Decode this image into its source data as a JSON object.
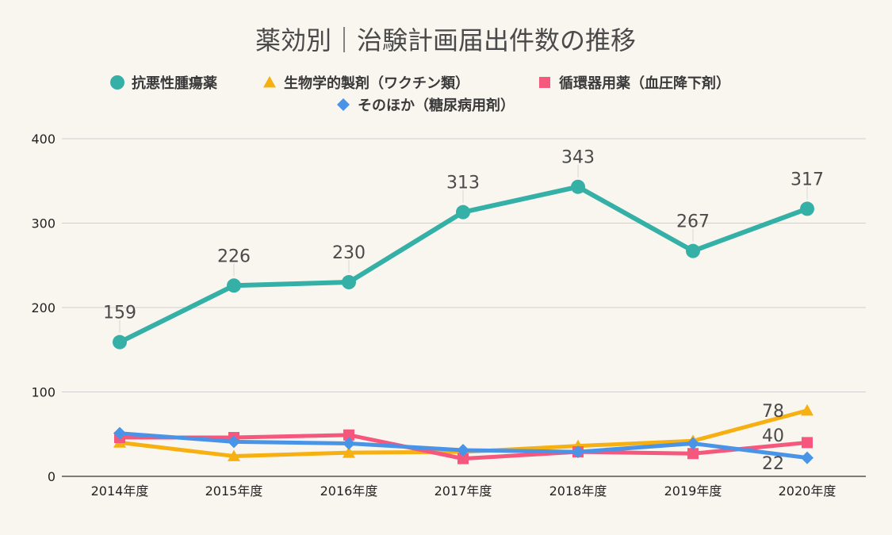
{
  "chart_data": {
    "type": "line",
    "title": "薬効別｜治験計画届出件数の推移",
    "xlabel": "",
    "ylabel": "",
    "categories": [
      "2014年度",
      "2015年度",
      "2016年度",
      "2017年度",
      "2018年度",
      "2019年度",
      "2020年度"
    ],
    "ylim": [
      0,
      400
    ],
    "yticks": [
      0,
      100,
      200,
      300,
      400
    ],
    "grid": true,
    "legend_position": "top",
    "series": [
      {
        "name": "抗悪性腫瘍薬",
        "values": [
          159,
          226,
          230,
          313,
          343,
          267,
          317
        ],
        "color": "#35b0a6",
        "marker": "circle",
        "labels": [
          "159",
          "226",
          "230",
          "313",
          "343",
          "267",
          "317"
        ]
      },
      {
        "name": "生物学的製剤（ワクチン類）",
        "values": [
          40,
          24,
          28,
          29,
          36,
          42,
          78
        ],
        "color": "#f6b012",
        "marker": "triangle",
        "labels": [
          "",
          "",
          "",
          "",
          "",
          "",
          "78"
        ]
      },
      {
        "name": "循環器用薬（血圧降下剤）",
        "values": [
          46,
          46,
          49,
          21,
          29,
          27,
          40
        ],
        "color": "#f6577c",
        "marker": "square",
        "labels": [
          "",
          "",
          "",
          "",
          "",
          "",
          "40"
        ]
      },
      {
        "name": "そのほか（糖尿病用剤）",
        "values": [
          51,
          41,
          39,
          31,
          29,
          39,
          22
        ],
        "color": "#4a94e8",
        "marker": "diamond",
        "labels": [
          "",
          "",
          "",
          "",
          "",
          "",
          "22"
        ]
      }
    ]
  }
}
